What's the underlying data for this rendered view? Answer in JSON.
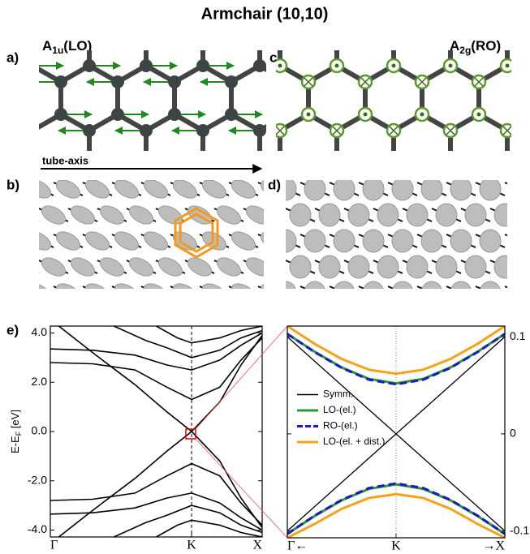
{
  "title": "Armchair (10,10)",
  "panels": {
    "a": {
      "label": "a)",
      "mode": {
        "base": "A",
        "sub": "1u",
        "rest": "(LO)"
      },
      "axis_label": "tube-axis"
    },
    "b": {
      "label": "b)"
    },
    "c": {
      "label": "c)",
      "mode": {
        "base": "A",
        "sub": "2g",
        "rest": "(RO)"
      }
    },
    "d": {
      "label": "d)"
    }
  },
  "chart_data": [
    {
      "type": "line",
      "label": "e)",
      "ylabel": {
        "base": "E-E",
        "sub": "F",
        "rest": " [eV]"
      },
      "xlim": [
        0,
        1
      ],
      "xticks": [
        {
          "value": 0,
          "label": "Γ"
        },
        {
          "value": 0.667,
          "label": "K"
        },
        {
          "value": 1,
          "label": "X"
        }
      ],
      "ylim": [
        -4.28,
        4.28
      ],
      "yticks": [
        {
          "value": 4,
          "label": "4.0"
        },
        {
          "value": 2,
          "label": "2.0"
        },
        {
          "value": 0,
          "label": "0.0"
        },
        {
          "value": -2,
          "label": "-2.0"
        },
        {
          "value": -4,
          "label": "-4.0"
        }
      ],
      "series": [
        {
          "color": "#000000",
          "x": [
            0.04,
            0.2,
            0.4,
            0.55,
            0.667,
            0.8,
            0.9,
            1
          ],
          "values": [
            4.28,
            3.2,
            1.9,
            0.8,
            0,
            -1.2,
            -2.7,
            -3.9
          ]
        },
        {
          "color": "#000000",
          "x": [
            0.04,
            0.2,
            0.4,
            0.55,
            0.667,
            0.8,
            0.9,
            1
          ],
          "values": [
            -4.28,
            -3.2,
            -1.9,
            -0.8,
            0,
            1.2,
            2.7,
            3.9
          ]
        },
        {
          "color": "#000000",
          "x": [
            0,
            0.2,
            0.4,
            0.55,
            0.667,
            0.8,
            0.9,
            1
          ],
          "values": [
            2.8,
            2.75,
            2.5,
            1.8,
            1.3,
            1.8,
            2.9,
            3.8
          ]
        },
        {
          "color": "#000000",
          "x": [
            0,
            0.2,
            0.4,
            0.55,
            0.667,
            0.8,
            0.9,
            1
          ],
          "values": [
            -2.8,
            -2.75,
            -2.5,
            -1.8,
            -1.3,
            -1.8,
            -2.9,
            -3.8
          ]
        },
        {
          "color": "#000000",
          "x": [
            0,
            0.2,
            0.4,
            0.55,
            0.667,
            0.8,
            0.9,
            1
          ],
          "values": [
            3.35,
            3.3,
            3.1,
            2.7,
            2.5,
            2.9,
            3.5,
            4.0
          ]
        },
        {
          "color": "#000000",
          "x": [
            0,
            0.2,
            0.4,
            0.55,
            0.667,
            0.8,
            0.9,
            1
          ],
          "values": [
            -3.35,
            -3.3,
            -3.1,
            -2.7,
            -2.5,
            -2.9,
            -3.5,
            -4.0
          ]
        },
        {
          "color": "#000000",
          "x": [
            0.3,
            0.45,
            0.55,
            0.667,
            0.8,
            0.9,
            1
          ],
          "values": [
            4.28,
            3.7,
            3.4,
            3.0,
            3.3,
            3.8,
            4.1
          ]
        },
        {
          "color": "#000000",
          "x": [
            0.3,
            0.45,
            0.55,
            0.667,
            0.8,
            0.9,
            1
          ],
          "values": [
            -4.28,
            -3.7,
            -3.4,
            -3.0,
            -3.3,
            -3.8,
            -4.1
          ]
        },
        {
          "color": "#000000",
          "x": [
            0.5,
            0.6,
            0.667,
            0.8,
            0.9,
            1
          ],
          "values": [
            4.28,
            3.8,
            3.6,
            3.8,
            4.1,
            4.28
          ]
        },
        {
          "color": "#000000",
          "x": [
            0.5,
            0.6,
            0.667,
            0.8,
            0.9,
            1
          ],
          "values": [
            -4.28,
            -3.8,
            -3.6,
            -3.8,
            -4.1,
            -4.28
          ]
        }
      ]
    },
    {
      "type": "line",
      "xlim": [
        -1,
        1
      ],
      "xticks": [
        {
          "value": -1,
          "label": "Γ←"
        },
        {
          "value": 0,
          "label": "K"
        },
        {
          "value": 1,
          "label": "→X"
        }
      ],
      "ylim": [
        -0.107,
        0.111
      ],
      "yticks": [
        0.1,
        0,
        -0.1
      ],
      "legend": "center-left",
      "series": [
        {
          "name": "Symm.",
          "color": "#000000",
          "dash": false,
          "x": [
            -1,
            0,
            1,
            null,
            -1,
            0,
            1
          ],
          "values": [
            0.1,
            0,
            -0.1,
            null,
            -0.1,
            0,
            0.1
          ]
        },
        {
          "name": "LO-(el.)",
          "color": "#2a9a2a",
          "dash": false,
          "x": [
            -1,
            -0.75,
            -0.5,
            -0.25,
            0,
            0.25,
            0.5,
            0.75,
            1,
            null,
            -1,
            -0.75,
            -0.5,
            -0.25,
            0,
            0.25,
            0.5,
            0.75,
            1
          ],
          "values": [
            0.103,
            0.0846,
            0.0684,
            0.0566,
            0.052,
            0.0566,
            0.0684,
            0.0846,
            0.103,
            null,
            -0.103,
            -0.0846,
            -0.0684,
            -0.0566,
            -0.052,
            -0.0566,
            -0.0684,
            -0.0846,
            -0.103
          ]
        },
        {
          "name": "RO-(el.)",
          "color": "#1a1acc",
          "dash": true,
          "x": [
            -1,
            -0.75,
            -0.5,
            -0.25,
            0,
            0.25,
            0.5,
            0.75,
            1,
            null,
            -1,
            -0.75,
            -0.5,
            -0.25,
            0,
            0.25,
            0.5,
            0.75,
            1
          ],
          "values": [
            0.103,
            0.0843,
            0.068,
            0.0558,
            0.051,
            0.0558,
            0.068,
            0.0843,
            0.103,
            null,
            -0.103,
            -0.0843,
            -0.068,
            -0.0558,
            -0.051,
            -0.0558,
            -0.068,
            -0.0843,
            -0.103
          ]
        },
        {
          "name": "LO-(el. + dist.)",
          "color": "#f5a21b",
          "dash": false,
          "x": [
            -1,
            -0.75,
            -0.5,
            -0.25,
            0,
            0.25,
            0.5,
            0.75,
            1,
            null,
            -1,
            -0.75,
            -0.5,
            -0.25,
            0,
            0.25,
            0.5,
            0.75,
            1
          ],
          "values": [
            0.111,
            0.0928,
            0.0772,
            0.0661,
            0.062,
            0.0661,
            0.0772,
            0.0928,
            0.111,
            null,
            -0.107,
            -0.0928,
            -0.0772,
            -0.0661,
            -0.062,
            -0.0661,
            -0.0772,
            -0.0928,
            -0.107
          ]
        }
      ]
    }
  ]
}
